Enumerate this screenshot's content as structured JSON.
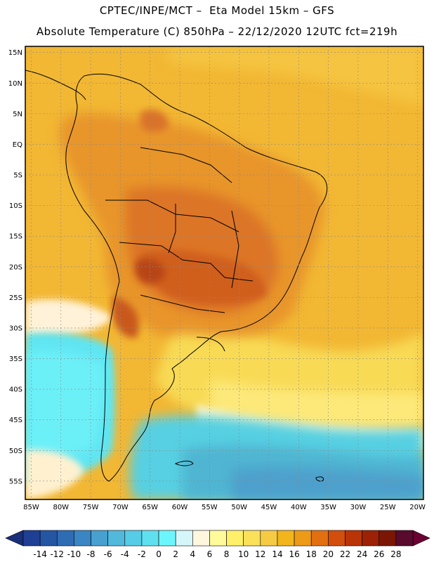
{
  "header": {
    "line1": "CPTEC/INPE/MCT –  Eta Model 15km – GFS",
    "line2": "Absolute Temperature (C) 850hPa – 22/12/2020 12UTC fct=219h"
  },
  "map": {
    "lat_labels": [
      "15N",
      "10N",
      "5N",
      "EQ",
      "5S",
      "10S",
      "15S",
      "20S",
      "25S",
      "30S",
      "35S",
      "40S",
      "45S",
      "50S",
      "55S"
    ],
    "lon_labels": [
      "85W",
      "80W",
      "75W",
      "70W",
      "65W",
      "60W",
      "55W",
      "50W",
      "45W",
      "40W",
      "35W",
      "30W",
      "25W",
      "20W"
    ],
    "lat_range": [
      16,
      -58
    ],
    "lon_range": [
      -86,
      -19
    ],
    "colors": {
      "land_frame": "#000000",
      "grid": "#9a9a9a",
      "warm_band": "#f4b324",
      "hot_land": "#e89423",
      "very_hot": "#d8651a",
      "cool_sea": "#5fe6f2",
      "cold_sea": "#56b7d0"
    }
  },
  "colorbar": {
    "levels": [
      "-14",
      "-12",
      "-10",
      "-8",
      "-6",
      "-4",
      "-2",
      "0",
      "2",
      "4",
      "6",
      "8",
      "10",
      "12",
      "14",
      "16",
      "18",
      "20",
      "22",
      "24",
      "26",
      "28"
    ],
    "colors": [
      "#1f3f94",
      "#2456a4",
      "#2e6cb4",
      "#3a86c4",
      "#47a0d0",
      "#52b8dc",
      "#56cce6",
      "#5fe0ef",
      "#6cf6fb",
      "#d5f6fb",
      "#fff6de",
      "#fffa9a",
      "#fff06a",
      "#fbe05a",
      "#f6cb44",
      "#f2b51c",
      "#ed9a17",
      "#e26f10",
      "#d24e0c",
      "#b93407",
      "#9c2105",
      "#7b1604",
      "#580b2c"
    ],
    "under_color": "#1a2f7a",
    "over_color": "#6b0033"
  }
}
